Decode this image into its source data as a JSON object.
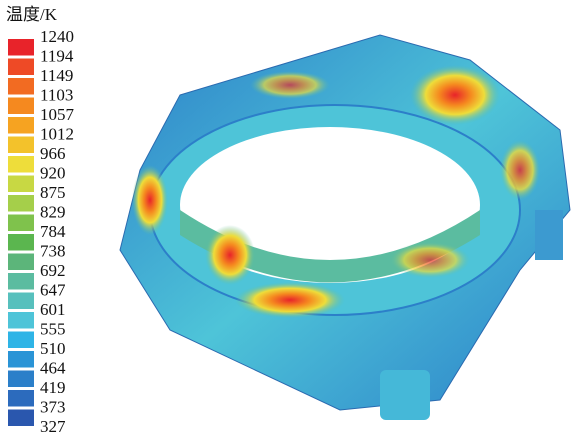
{
  "legend": {
    "title": "温度/K",
    "labels": [
      "1240",
      "1194",
      "1149",
      "1103",
      "1057",
      "1012",
      "966",
      "920",
      "875",
      "829",
      "784",
      "738",
      "692",
      "647",
      "601",
      "555",
      "510",
      "464",
      "419",
      "373",
      "327"
    ]
  }
}
